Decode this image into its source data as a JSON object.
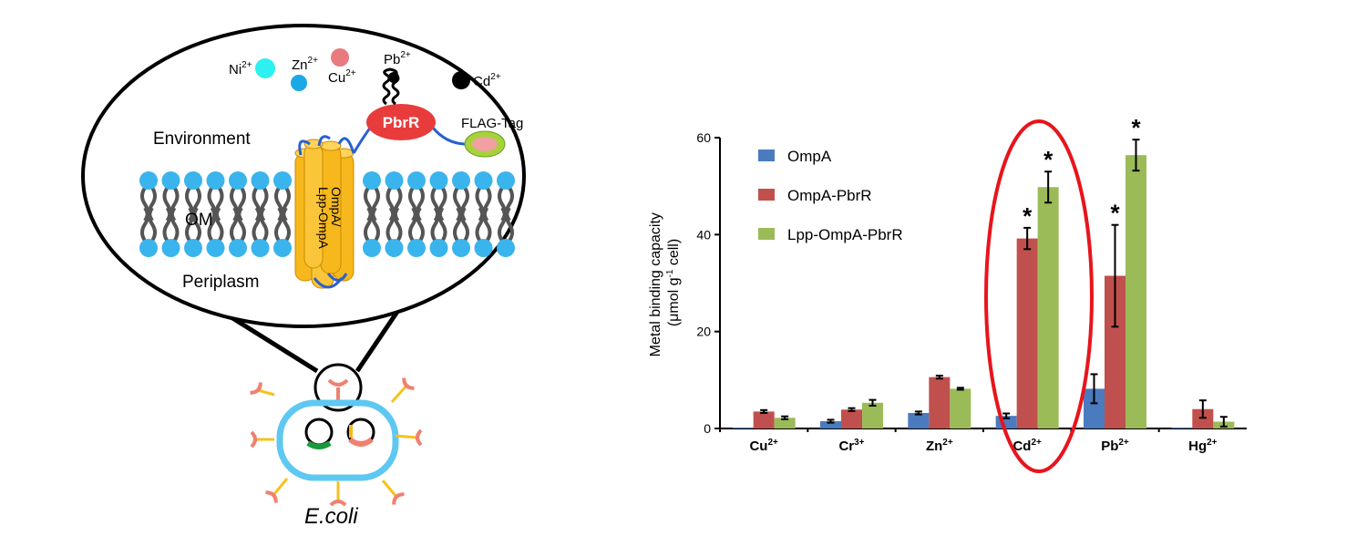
{
  "diagram": {
    "ions": [
      {
        "base": "Ni",
        "charge": "2+",
        "color": "#2ff0f0"
      },
      {
        "base": "Zn",
        "charge": "2+",
        "color": "#1aa8e6"
      },
      {
        "base": "Cu",
        "charge": "2+",
        "color": "#e87a80"
      },
      {
        "base": "Pb",
        "charge": "2+",
        "color": "#000000"
      },
      {
        "base": "Cd",
        "charge": "2+",
        "color": "#000000"
      }
    ],
    "protein_label": "PbrR",
    "tag_label": "FLAG-Tag",
    "environment_label": "Environment",
    "membrane_label": "OM",
    "periplasm_label": "Periplasm",
    "anchor_label_line1": "OmpA/",
    "anchor_label_line2": "Lpp-OmpA",
    "organism_label": "E.coli",
    "colors": {
      "lipid_head": "#3ab4ec",
      "lipid_tail": "#555555",
      "cylinder": "#f6b81c",
      "protein": "#e83c3c",
      "tag_outer": "#a6d33c",
      "tag_inner": "#f0a0a0",
      "cell": "#5ec8f2",
      "linker": "#2a5fd0"
    }
  },
  "chart_data": {
    "type": "bar",
    "categories": [
      "Cu",
      "Cr",
      "Zn",
      "Cd",
      "Pb",
      "Hg"
    ],
    "category_charges": [
      "2+",
      "3+",
      "2+",
      "2+",
      "2+",
      "2+"
    ],
    "ylabel_line1": "Metal binding capacity",
    "ylabel_line2_prefix": "(μmol g",
    "ylabel_line2_sup": "-1",
    "ylabel_line2_suffix": " cell)",
    "ylim": [
      0,
      60
    ],
    "yticks": [
      0,
      20,
      40,
      60
    ],
    "legend_position": "top-left",
    "highlight_category": "Cd",
    "significance_marker": "*",
    "series": [
      {
        "name": "OmpA",
        "color": "#4a7bbf",
        "values": [
          0.2,
          1.5,
          3.2,
          2.6,
          8.2,
          0.2
        ],
        "errors": [
          0,
          0.3,
          0.3,
          0.5,
          3.0,
          0
        ]
      },
      {
        "name": "OmpA-PbrR",
        "color": "#c0504d",
        "values": [
          3.5,
          3.9,
          10.6,
          39.2,
          31.5,
          4.0
        ],
        "errors": [
          0.3,
          0.3,
          0.3,
          2.2,
          10.5,
          1.8
        ]
      },
      {
        "name": "Lpp-OmpA-PbrR",
        "color": "#9bbb59",
        "values": [
          2.2,
          5.3,
          8.2,
          49.8,
          56.4,
          1.4
        ],
        "errors": [
          0.3,
          0.6,
          0.2,
          3.2,
          3.2,
          1.0
        ]
      }
    ],
    "significant": [
      [],
      [],
      [],
      [],
      [],
      []
    ],
    "significant_flags": [
      [
        false,
        false,
        false,
        false,
        false,
        false
      ],
      [
        false,
        false,
        false,
        true,
        true,
        false
      ],
      [
        false,
        false,
        false,
        true,
        true,
        false
      ]
    ]
  }
}
